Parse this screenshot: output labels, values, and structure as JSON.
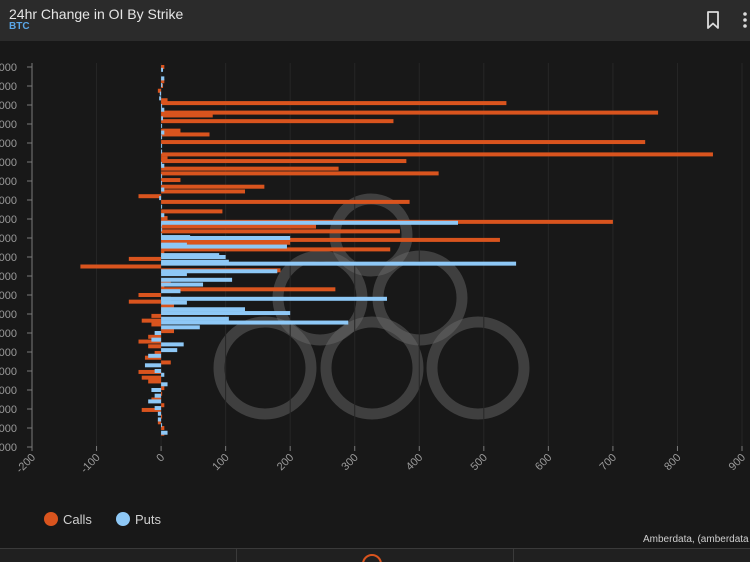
{
  "header": {
    "title": "24hr Change in OI By Strike",
    "subtitle": "BTC"
  },
  "icons": {
    "bookmark": "bookmark-icon",
    "more": "more-options-icon",
    "footer": "ring-icon",
    "watermark": "amberdata-watermark-logo"
  },
  "credit": "Amberdata, (amberdata",
  "chart_data": {
    "type": "bar",
    "orientation": "horizontal",
    "title": "24hr Change in OI By Strike",
    "subtitle": "BTC",
    "xlabel": "",
    "ylabel": "",
    "xlim": [
      -200,
      900
    ],
    "x_ticks": [
      "-200",
      "-100",
      "0",
      "100",
      "200",
      "300",
      "400",
      "500",
      "600",
      "700",
      "800",
      "900"
    ],
    "y_tick_labels": [
      "000",
      "000",
      "000",
      "000",
      "000",
      "000",
      "000",
      "000",
      "000",
      "000",
      "000",
      "000",
      "000",
      "000",
      "000",
      "000",
      "000",
      "000",
      "000",
      "000",
      "000"
    ],
    "y_tick_note": "strike labels are cut off at the left edge; only the last three digits are visible",
    "grid": "vertical",
    "legend_position": "bottom-left",
    "colors": {
      "calls": "#d9541e",
      "puts": "#8ec8f6",
      "background": "#181818",
      "header": "#2b2b2b",
      "axis": "#7a7a7a"
    },
    "series": [
      {
        "name": "Calls",
        "color": "#d9541e",
        "values": [
          5,
          5,
          3,
          -5,
          10,
          535,
          770,
          80,
          360,
          30,
          75,
          750,
          855,
          10,
          380,
          275,
          430,
          30,
          160,
          130,
          -35,
          385,
          95,
          10,
          700,
          240,
          370,
          525,
          200,
          355,
          5,
          -50,
          -125,
          185,
          15,
          5,
          270,
          -35,
          -50,
          20,
          10,
          -15,
          -30,
          -15,
          20,
          -20,
          -35,
          -20,
          -10,
          -25,
          15,
          -35,
          -30,
          -20,
          5,
          0,
          -15,
          5,
          -30,
          0,
          -5,
          5,
          5
        ],
        "row_offsets": [
          0,
          0.75,
          1,
          1.25,
          1.75,
          1.9,
          2.4,
          2.55,
          2.85,
          3.35,
          3.55,
          3.95,
          4.6,
          4.8,
          4.95,
          5.35,
          5.6,
          5.95,
          6.3,
          6.55,
          6.8,
          7.1,
          7.6,
          7.95,
          8.15,
          8.4,
          8.65,
          9.1,
          9.25,
          9.6,
          9.75,
          10.1,
          10.5,
          10.7,
          11.3,
          11.5,
          11.7,
          12,
          12.35,
          12.6,
          12.85,
          13.1,
          13.35,
          13.55,
          13.9,
          14.2,
          14.45,
          14.7,
          15.05,
          15.3,
          15.55,
          16.05,
          16.35,
          16.55,
          16.9,
          17.2,
          17.5,
          17.8,
          18.05,
          18.4,
          18.7,
          19,
          19.3
        ]
      },
      {
        "name": "Puts",
        "color": "#8ec8f6",
        "values": [
          3,
          5,
          2,
          -2,
          -3,
          0,
          5,
          3,
          0,
          5,
          0,
          0,
          0,
          0,
          5,
          0,
          0,
          5,
          -3,
          0,
          5,
          0,
          0,
          0,
          460,
          45,
          200,
          40,
          195,
          90,
          100,
          105,
          550,
          40,
          180,
          110,
          65,
          30,
          15,
          350,
          40,
          130,
          200,
          105,
          290,
          60,
          -10,
          -15,
          35,
          25,
          -20,
          -25,
          -10,
          5,
          10,
          -15,
          -10,
          -20,
          -10,
          -5,
          -5,
          0,
          10
        ],
        "row_offsets": [
          0.15,
          0.6,
          0.95,
          1.4,
          1.65,
          2.05,
          2.25,
          2.7,
          3.1,
          3.45,
          3.7,
          4.15,
          4.45,
          5.1,
          5.2,
          5.75,
          6.1,
          6.45,
          6.9,
          7.35,
          7.8,
          8.3,
          8.55,
          8.85,
          8.2,
          8.95,
          9,
          9.35,
          9.45,
          9.9,
          10,
          10.25,
          10.35,
          10.9,
          10.75,
          11.2,
          11.45,
          11.8,
          12.2,
          12.2,
          12.4,
          12.75,
          12.95,
          13.25,
          13.45,
          13.7,
          14,
          14.35,
          14.6,
          14.9,
          15.2,
          15.7,
          16,
          16.2,
          16.7,
          17,
          17.3,
          17.6,
          17.95,
          18.25,
          18.55,
          18.85,
          19.25
        ]
      }
    ]
  }
}
